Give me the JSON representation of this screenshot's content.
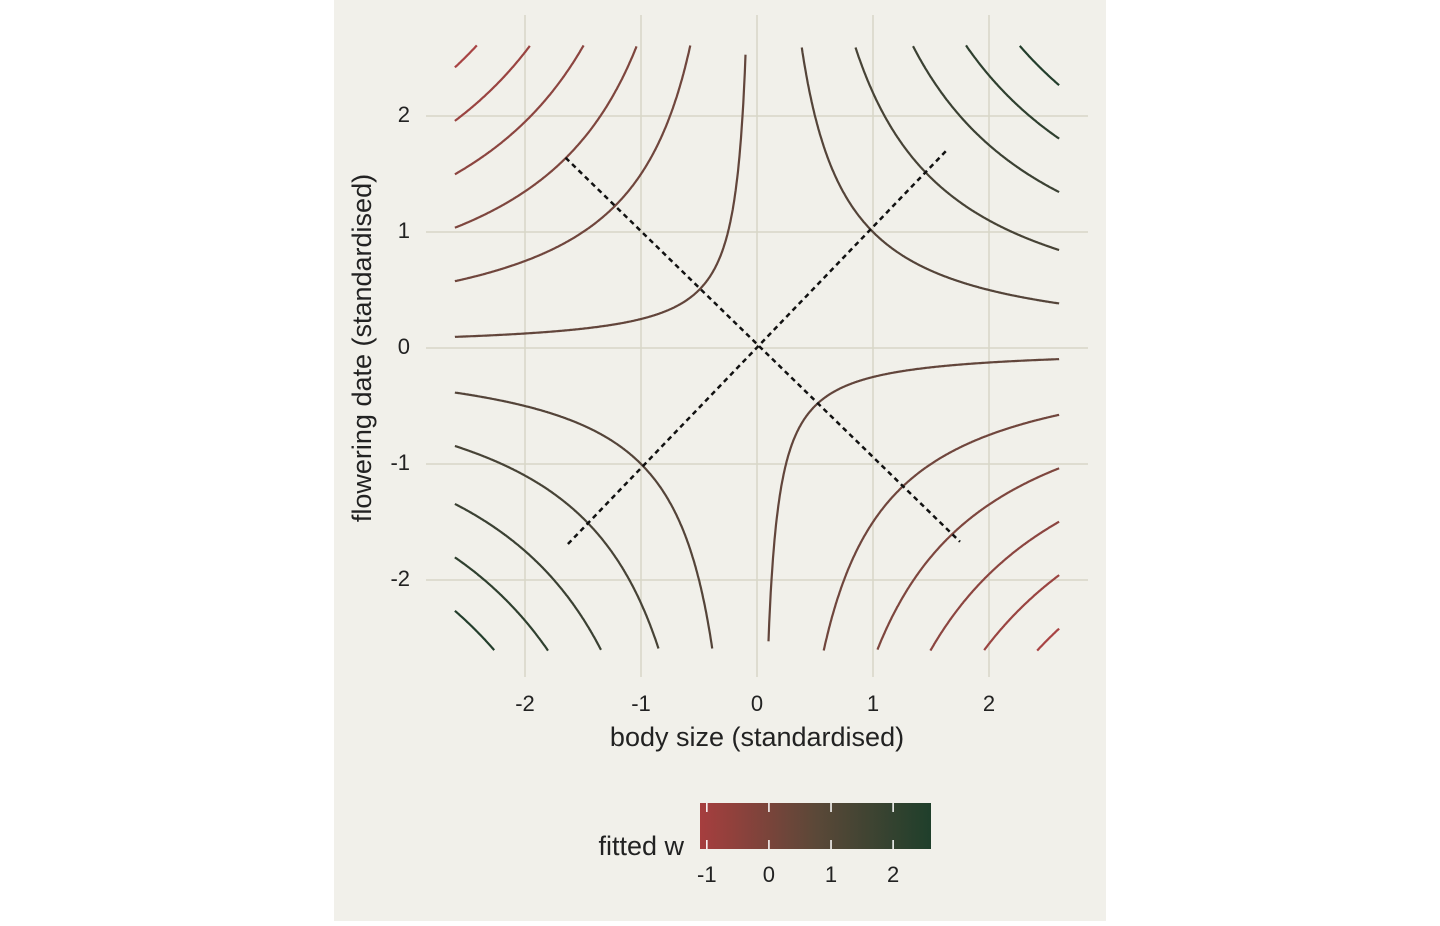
{
  "chart_data": {
    "type": "contour",
    "xlabel": "body size (standardised)",
    "ylabel": "flowering date (standardised)",
    "xlim": [
      -2.61,
      2.61
    ],
    "ylim": [
      -2.61,
      2.61
    ],
    "xticks": [
      -2,
      -1,
      0,
      1,
      2
    ],
    "yticks": [
      -2,
      -1,
      0,
      1,
      2
    ],
    "grid": true,
    "contours": [
      {
        "xy": -6.3,
        "color": "#a84444"
      },
      {
        "xy": -5.1,
        "color": "#9a4441"
      },
      {
        "xy": -3.9,
        "color": "#8c4540"
      },
      {
        "xy": -2.7,
        "color": "#7e463e"
      },
      {
        "xy": -1.5,
        "color": "#70463d"
      },
      {
        "xy": -0.25,
        "color": "#62453b"
      },
      {
        "xy": 1.0,
        "color": "#544439"
      },
      {
        "xy": 2.2,
        "color": "#474336"
      },
      {
        "xy": 3.5,
        "color": "#3b4133"
      },
      {
        "xy": 4.7,
        "color": "#2f402f"
      },
      {
        "xy": 5.9,
        "color": "#233e2c"
      }
    ],
    "axes_lines": [
      {
        "x": [
          -1.65,
          1.75
        ],
        "y": [
          1.64,
          -1.67
        ]
      },
      {
        "x": [
          -1.63,
          1.65
        ],
        "y": [
          -1.69,
          1.72
        ]
      }
    ],
    "colorbar": {
      "title": "fitted w",
      "lim": [
        -1.11,
        2.61
      ],
      "ticks": [
        -1,
        0,
        1,
        2
      ],
      "colors": [
        "#a63e3e",
        "#5b4838",
        "#1f3f2b"
      ]
    }
  }
}
